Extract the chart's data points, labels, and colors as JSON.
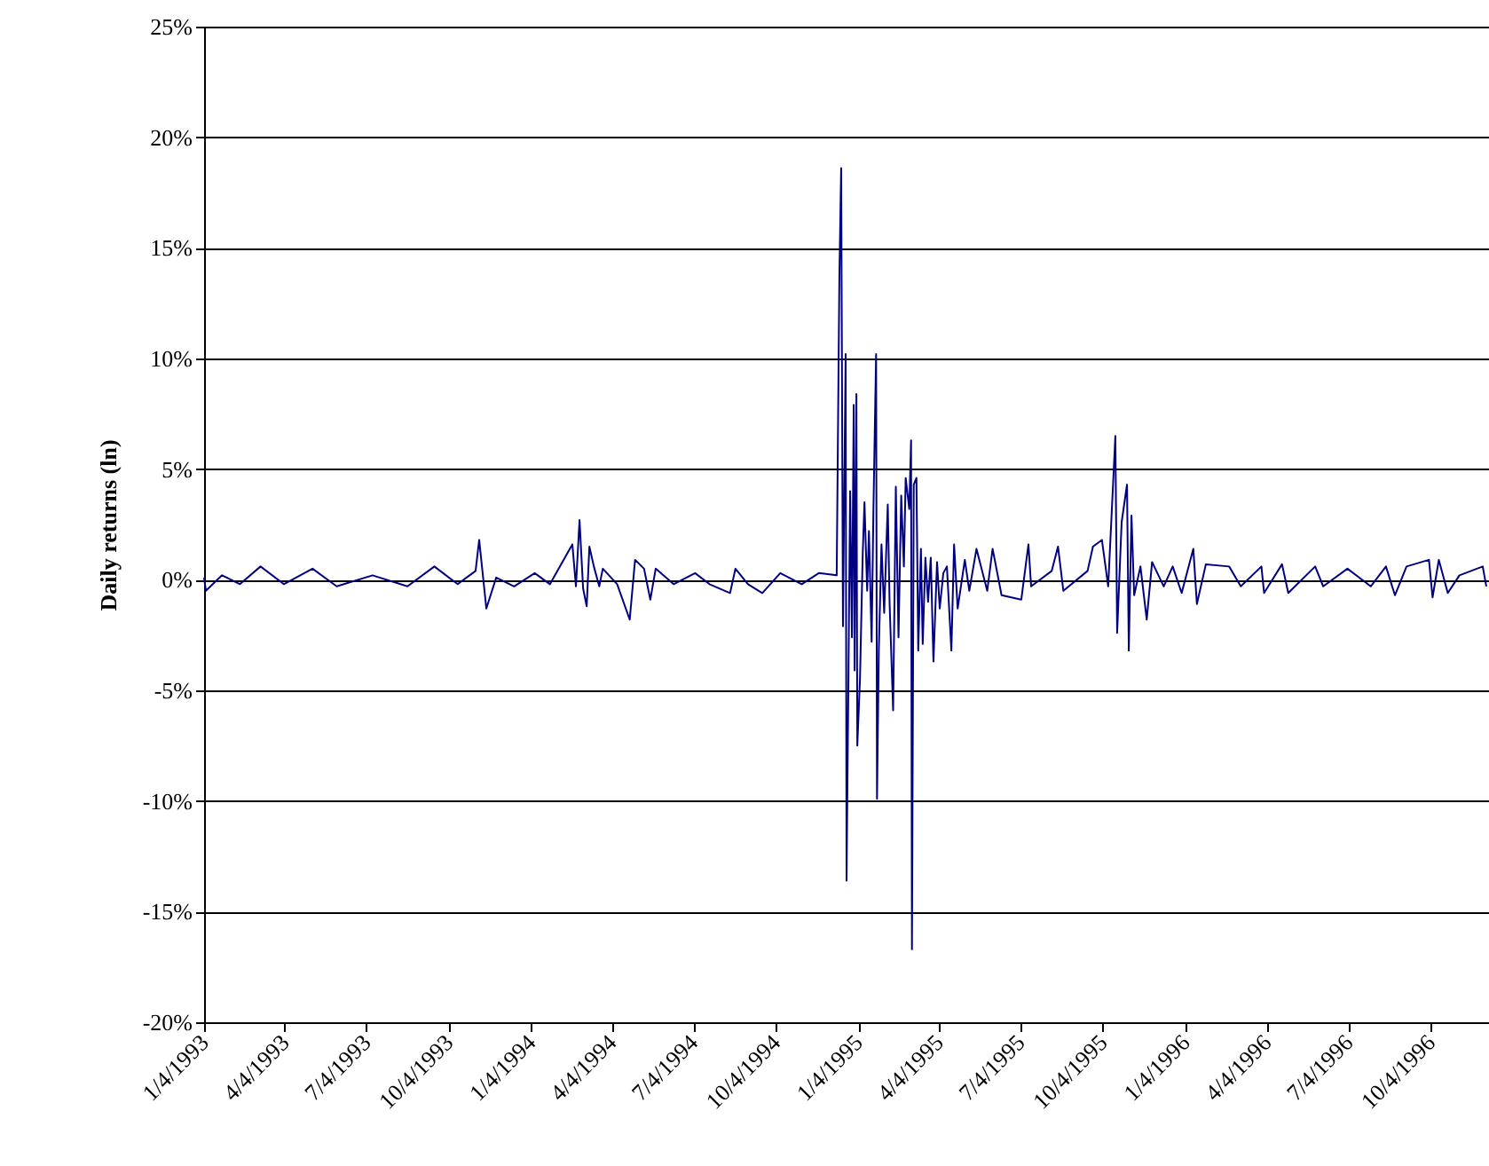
{
  "chart_data": {
    "type": "line",
    "ylabel": "Daily returns (ln)",
    "grid": "y",
    "xlim": [
      "1993-01-04",
      "1996-12-08"
    ],
    "xticks": [
      {
        "value": "1993-01-04",
        "label": "1/4/1993"
      },
      {
        "value": "1993-04-04",
        "label": "4/4/1993"
      },
      {
        "value": "1993-07-04",
        "label": "7/4/1993"
      },
      {
        "value": "1993-10-04",
        "label": "10/4/1993"
      },
      {
        "value": "1994-01-04",
        "label": "1/4/1994"
      },
      {
        "value": "1994-04-04",
        "label": "4/4/1994"
      },
      {
        "value": "1994-07-04",
        "label": "7/4/1994"
      },
      {
        "value": "1994-10-04",
        "label": "10/4/1994"
      },
      {
        "value": "1995-01-04",
        "label": "1/4/1995"
      },
      {
        "value": "1995-04-04",
        "label": "4/4/1995"
      },
      {
        "value": "1995-07-04",
        "label": "7/4/1995"
      },
      {
        "value": "1995-10-04",
        "label": "10/4/1995"
      },
      {
        "value": "1996-01-04",
        "label": "1/4/1996"
      },
      {
        "value": "1996-04-04",
        "label": "4/4/1996"
      },
      {
        "value": "1996-07-04",
        "label": "7/4/1996"
      },
      {
        "value": "1996-10-04",
        "label": "10/4/1996"
      }
    ],
    "ylim": [
      -20,
      25
    ],
    "yticks": [
      {
        "value": -20,
        "label": "-20%"
      },
      {
        "value": -15,
        "label": "-15%"
      },
      {
        "value": -10,
        "label": "-10%"
      },
      {
        "value": -5,
        "label": "-5%"
      },
      {
        "value": 0,
        "label": "0%"
      },
      {
        "value": 5,
        "label": "5%"
      },
      {
        "value": 10,
        "label": "10%"
      },
      {
        "value": 15,
        "label": "15%"
      },
      {
        "value": 20,
        "label": "20%"
      },
      {
        "value": 25,
        "label": "25%"
      }
    ],
    "x": [
      "1993-01-04",
      "1993-01-06",
      "1993-01-24",
      "1993-02-13",
      "1993-03-08",
      "1993-04-03",
      "1993-05-05",
      "1993-06-01",
      "1993-07-11",
      "1993-08-19",
      "1993-09-18",
      "1993-10-14",
      "1993-11-03",
      "1993-11-07",
      "1993-11-15",
      "1993-11-26",
      "1993-12-16",
      "1994-01-08",
      "1994-01-25",
      "1994-02-19",
      "1994-02-23",
      "1994-02-27",
      "1994-03-03",
      "1994-03-07",
      "1994-03-10",
      "1994-03-15",
      "1994-03-21",
      "1994-03-25",
      "1994-04-10",
      "1994-04-24",
      "1994-04-30",
      "1994-05-10",
      "1994-05-17",
      "1994-05-23",
      "1994-06-12",
      "1994-07-06",
      "1994-07-22",
      "1994-08-14",
      "1994-08-20",
      "1994-09-03",
      "1994-09-19",
      "1994-10-09",
      "1994-11-02",
      "1994-11-21",
      "1994-12-11",
      "1994-12-14",
      "1994-12-16",
      "1994-12-18",
      "1994-12-21",
      "1994-12-22",
      "1994-12-26",
      "1994-12-28",
      "1994-12-30",
      "1994-12-31",
      "1995-01-02",
      "1995-01-03",
      "1995-01-06",
      "1995-01-09",
      "1995-01-11",
      "1995-01-14",
      "1995-01-16",
      "1995-01-19",
      "1995-01-21",
      "1995-01-24",
      "1995-01-25",
      "1995-01-27",
      "1995-01-30",
      "1995-02-02",
      "1995-02-06",
      "1995-02-08",
      "1995-02-12",
      "1995-02-15",
      "1995-02-18",
      "1995-02-21",
      "1995-02-24",
      "1995-02-26",
      "1995-03-02",
      "1995-03-04",
      "1995-03-05",
      "1995-03-07",
      "1995-03-10",
      "1995-03-12",
      "1995-03-15",
      "1995-03-17",
      "1995-03-20",
      "1995-03-23",
      "1995-03-26",
      "1995-03-29",
      "1995-04-02",
      "1995-04-05",
      "1995-04-09",
      "1995-04-13",
      "1995-04-18",
      "1995-04-21",
      "1995-04-25",
      "1995-05-03",
      "1995-05-08",
      "1995-05-16",
      "1995-05-28",
      "1995-06-03",
      "1995-06-13",
      "1995-07-05",
      "1995-07-13",
      "1995-07-16",
      "1995-08-08",
      "1995-08-15",
      "1995-08-21",
      "1995-09-17",
      "1995-09-23",
      "1995-10-03",
      "1995-10-10",
      "1995-10-18",
      "1995-10-20",
      "1995-10-25",
      "1995-10-31",
      "1995-11-02",
      "1995-11-05",
      "1995-11-08",
      "1995-11-15",
      "1995-11-22",
      "1995-11-28",
      "1995-12-11",
      "1995-12-21",
      "1995-12-31",
      "1996-01-13",
      "1996-01-17",
      "1996-01-27",
      "1996-02-22",
      "1996-03-06",
      "1996-03-29",
      "1996-04-01",
      "1996-04-21",
      "1996-04-28",
      "1996-05-28",
      "1996-06-06",
      "1996-07-03",
      "1996-07-29",
      "1996-08-15",
      "1996-08-25",
      "1996-09-07",
      "1996-10-02",
      "1996-10-06",
      "1996-10-13",
      "1996-10-23",
      "1996-11-05",
      "1996-12-01",
      "1996-12-05"
    ],
    "series": [
      {
        "color": "#000080",
        "values": [
          0.1,
          -0.5,
          0.2,
          -0.2,
          0.6,
          -0.2,
          0.5,
          -0.3,
          0.2,
          -0.3,
          0.6,
          -0.2,
          0.4,
          1.8,
          -1.3,
          0.1,
          -0.3,
          0.3,
          -0.2,
          1.6,
          -0.3,
          2.7,
          -0.4,
          -1.2,
          1.5,
          0.6,
          -0.3,
          0.5,
          -0.2,
          -1.8,
          0.9,
          0.5,
          -0.9,
          0.5,
          -0.2,
          0.3,
          -0.2,
          -0.6,
          0.5,
          -0.2,
          -0.6,
          0.3,
          -0.2,
          0.3,
          0.2,
          13.7,
          18.6,
          -2.1,
          10.2,
          -13.6,
          4.0,
          -2.6,
          7.9,
          -4.1,
          8.4,
          -7.5,
          -4.5,
          1.1,
          3.5,
          -0.5,
          2.2,
          -2.8,
          3.2,
          10.2,
          -9.9,
          -3.2,
          1.6,
          -1.5,
          3.4,
          -1.0,
          -5.9,
          4.2,
          -2.6,
          3.8,
          0.6,
          4.6,
          3.2,
          6.3,
          -16.7,
          4.3,
          4.6,
          -3.2,
          1.4,
          -2.9,
          1.0,
          -1.0,
          1.0,
          -3.7,
          0.8,
          -1.3,
          0.3,
          0.6,
          -3.2,
          1.6,
          -1.3,
          0.9,
          -0.5,
          1.4,
          -0.5,
          1.4,
          -0.7,
          -0.9,
          1.6,
          -0.3,
          0.4,
          1.5,
          -0.5,
          0.4,
          1.5,
          1.8,
          -0.3,
          6.5,
          -2.4,
          2.6,
          4.3,
          -3.2,
          2.9,
          -0.7,
          0.6,
          -1.8,
          0.8,
          -0.3,
          0.6,
          -0.6,
          1.4,
          -1.1,
          0.7,
          0.6,
          -0.3,
          0.6,
          -0.6,
          0.7,
          -0.6,
          0.6,
          -0.3,
          0.5,
          -0.3,
          0.6,
          -0.7,
          0.6,
          0.9,
          -0.8,
          0.9,
          -0.6,
          0.2,
          0.6,
          -0.3
        ]
      }
    ]
  }
}
